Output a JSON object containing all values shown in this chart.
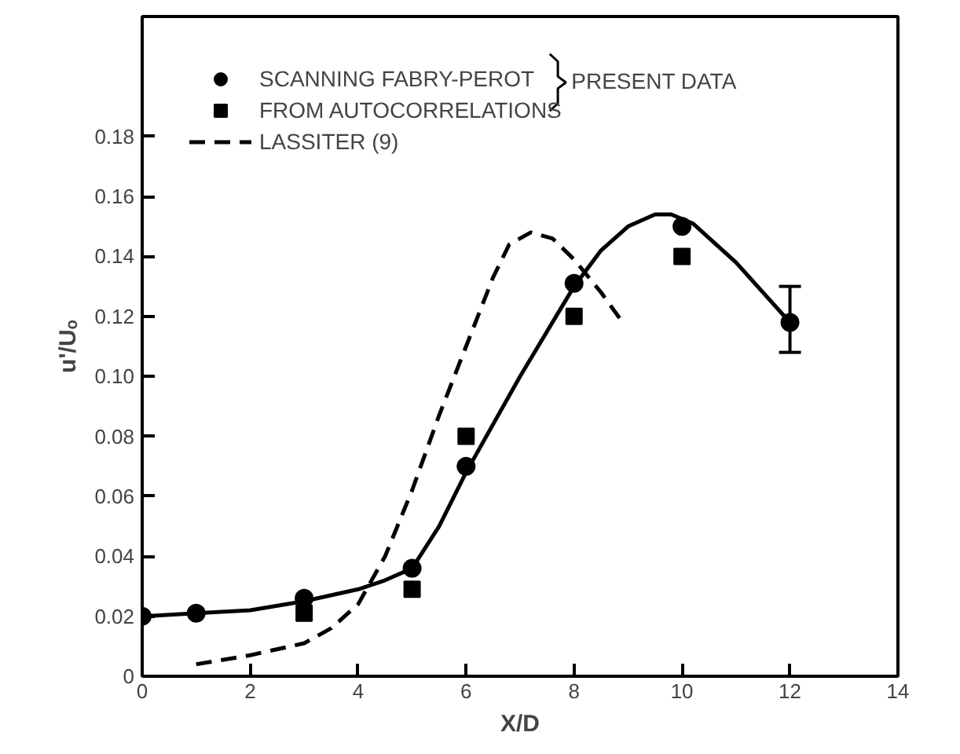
{
  "chart_data": {
    "type": "scatter",
    "xlabel": "X/D",
    "ylabel": "u'/Uₒ",
    "xlim": [
      0,
      14
    ],
    "ylim": [
      0,
      0.22
    ],
    "xticks": [
      0,
      2,
      4,
      6,
      8,
      10,
      12,
      14
    ],
    "yticks": [
      {
        "value": 0,
        "label": "0"
      },
      0.02,
      0.04,
      0.06,
      0.08,
      {
        "value": 0.1,
        "label": "0.10"
      },
      0.12,
      0.14,
      0.16,
      0.18
    ],
    "grid": false,
    "legend": "top left",
    "annotations": [
      "PRESENT DATA"
    ],
    "series": [
      {
        "name": "SCANNING FABRY-PEROT",
        "marker": "circle",
        "color": "#000000",
        "x": [
          0,
          1,
          3,
          5,
          6,
          8,
          10,
          12
        ],
        "values": [
          0.02,
          0.021,
          0.026,
          0.036,
          0.07,
          0.131,
          0.15,
          0.118
        ],
        "errors": [
          null,
          null,
          null,
          null,
          null,
          null,
          null,
          [
            0.108,
            0.13
          ]
        ]
      },
      {
        "name": "FROM AUTOCORRELATIONS",
        "marker": "square",
        "color": "#000000",
        "x": [
          3,
          5,
          6,
          8,
          10
        ],
        "values": [
          0.021,
          0.029,
          0.08,
          0.12,
          0.14
        ]
      },
      {
        "name": "LASSITER (9)",
        "type": "line",
        "line_style": "dashed",
        "marker": "none",
        "color": "#000000",
        "x": [
          1,
          2,
          3,
          3.5,
          4,
          4.5,
          5,
          5.5,
          6,
          6.5,
          6.8,
          7.2,
          7.6,
          8,
          8.5,
          8.9
        ],
        "values": [
          0.004,
          0.007,
          0.011,
          0.016,
          0.024,
          0.04,
          0.062,
          0.087,
          0.11,
          0.133,
          0.144,
          0.148,
          0.146,
          0.139,
          0.128,
          0.118
        ]
      },
      {
        "type": "line",
        "line_style": "solid",
        "marker": "none",
        "color": "#000000",
        "x": [
          0,
          1,
          2,
          3,
          4,
          4.5,
          5,
          5.5,
          6,
          7,
          8,
          8.5,
          9,
          9.5,
          9.8,
          10.2,
          11,
          12
        ],
        "values": [
          0.02,
          0.021,
          0.022,
          0.025,
          0.029,
          0.032,
          0.036,
          0.05,
          0.068,
          0.1,
          0.13,
          0.142,
          0.15,
          0.154,
          0.154,
          0.151,
          0.138,
          0.118
        ]
      }
    ]
  }
}
